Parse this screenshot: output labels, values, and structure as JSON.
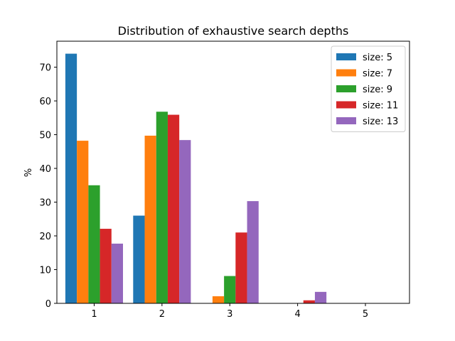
{
  "chart_data": {
    "type": "bar",
    "title": "Distribution of exhaustive search depths",
    "xlabel": "",
    "ylabel": "%",
    "categories": [
      "1",
      "2",
      "3",
      "4",
      "5"
    ],
    "x": [
      1,
      2,
      3,
      4,
      5
    ],
    "xlim": [
      0.45,
      5.65
    ],
    "ylim": [
      0,
      77.7
    ],
    "yticks": [
      0,
      10,
      20,
      30,
      40,
      50,
      60,
      70
    ],
    "grid": false,
    "legend_position": "top-right",
    "series": [
      {
        "name": "size: 5",
        "color": "#1f77b4",
        "values": [
          74.0,
          26.0,
          0,
          0,
          0
        ]
      },
      {
        "name": "size: 7",
        "color": "#ff7f0e",
        "values": [
          48.2,
          49.7,
          2.1,
          0,
          0
        ]
      },
      {
        "name": "size: 9",
        "color": "#2ca02c",
        "values": [
          35.0,
          56.8,
          8.1,
          0,
          0
        ]
      },
      {
        "name": "size: 11",
        "color": "#d62728",
        "values": [
          22.1,
          55.9,
          21.0,
          0.9,
          0
        ]
      },
      {
        "name": "size: 13",
        "color": "#9467bd",
        "values": [
          17.7,
          48.4,
          30.3,
          3.4,
          0
        ]
      }
    ]
  }
}
